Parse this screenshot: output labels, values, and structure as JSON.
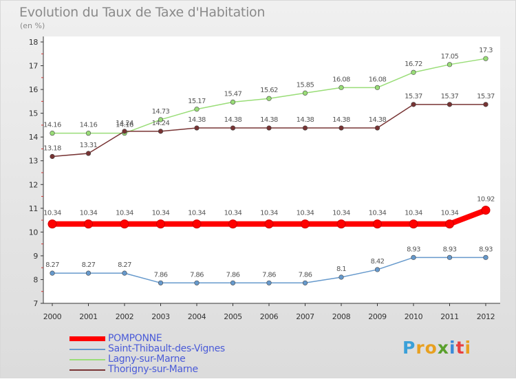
{
  "title": "Evolution du Taux de Taxe d'Habitation",
  "subtitle": "(en %)",
  "logo": {
    "text": "Proxiti",
    "letters": [
      {
        "ch": "P",
        "color": "#3aa0d8"
      },
      {
        "ch": "r",
        "color": "#e8a020"
      },
      {
        "ch": "o",
        "color": "#e8a020"
      },
      {
        "ch": "x",
        "color": "#5aa02c"
      },
      {
        "ch": "i",
        "color": "#3a8ad8"
      },
      {
        "ch": "t",
        "color": "#e84040"
      },
      {
        "ch": "i",
        "color": "#e8a020"
      }
    ]
  },
  "chart_data": {
    "type": "line",
    "title": "Evolution du Taux de Taxe d'Habitation",
    "ylabel": "(en %)",
    "xlabel": "",
    "x": [
      "2000",
      "2001",
      "2002",
      "2003",
      "2004",
      "2005",
      "2006",
      "2007",
      "2008",
      "2009",
      "2010",
      "2011",
      "2012"
    ],
    "ylim": [
      7,
      18
    ],
    "yticks": [
      "7",
      "8",
      "9",
      "10",
      "11",
      "12",
      "13",
      "14",
      "15",
      "16",
      "17",
      "18"
    ],
    "grid": false,
    "legend_position": "bottom-left",
    "series": [
      {
        "name": "POMPONNE",
        "color": "#ff0000",
        "width": 8,
        "values": [
          10.34,
          10.34,
          10.34,
          10.34,
          10.34,
          10.34,
          10.34,
          10.34,
          10.34,
          10.34,
          10.34,
          10.34,
          10.92
        ],
        "labels": [
          "10.34",
          "10.34",
          "10.34",
          "10.34",
          "10.34",
          "10.34",
          "10.34",
          "10.34",
          "10.34",
          "10.34",
          "10.34",
          "10.34",
          "10.92"
        ]
      },
      {
        "name": "Saint-Thibault-des-Vignes",
        "color": "#6699cc",
        "width": 1.5,
        "values": [
          8.27,
          8.27,
          8.27,
          7.86,
          7.86,
          7.86,
          7.86,
          7.86,
          8.1,
          8.42,
          8.93,
          8.93,
          8.93
        ],
        "labels": [
          "8.27",
          "8.27",
          "8.27",
          "7.86",
          "7.86",
          "7.86",
          "7.86",
          "7.86",
          "8.1",
          "8.42",
          "8.93",
          "8.93",
          "8.93"
        ]
      },
      {
        "name": "Lagny-sur-Marne",
        "color": "#99dd77",
        "width": 1.5,
        "values": [
          14.16,
          14.16,
          14.16,
          14.73,
          15.17,
          15.47,
          15.62,
          15.85,
          16.08,
          16.08,
          16.72,
          17.05,
          17.3
        ],
        "labels": [
          "14.16",
          "14.16",
          "14.16",
          "14.73",
          "15.17",
          "15.47",
          "15.62",
          "15.85",
          "16.08",
          "16.08",
          "16.72",
          "17.05",
          "17.3"
        ]
      },
      {
        "name": "Thorigny-sur-Marne",
        "color": "#773333",
        "width": 1.5,
        "values": [
          13.18,
          13.31,
          14.24,
          14.24,
          14.38,
          14.38,
          14.38,
          14.38,
          14.38,
          14.38,
          15.37,
          15.37,
          15.37
        ],
        "labels": [
          "13.18",
          "13.31",
          "14.24",
          "14.24",
          "14.38",
          "14.38",
          "14.38",
          "14.38",
          "14.38",
          "14.38",
          "15.37",
          "15.37",
          "15.37"
        ]
      }
    ]
  }
}
